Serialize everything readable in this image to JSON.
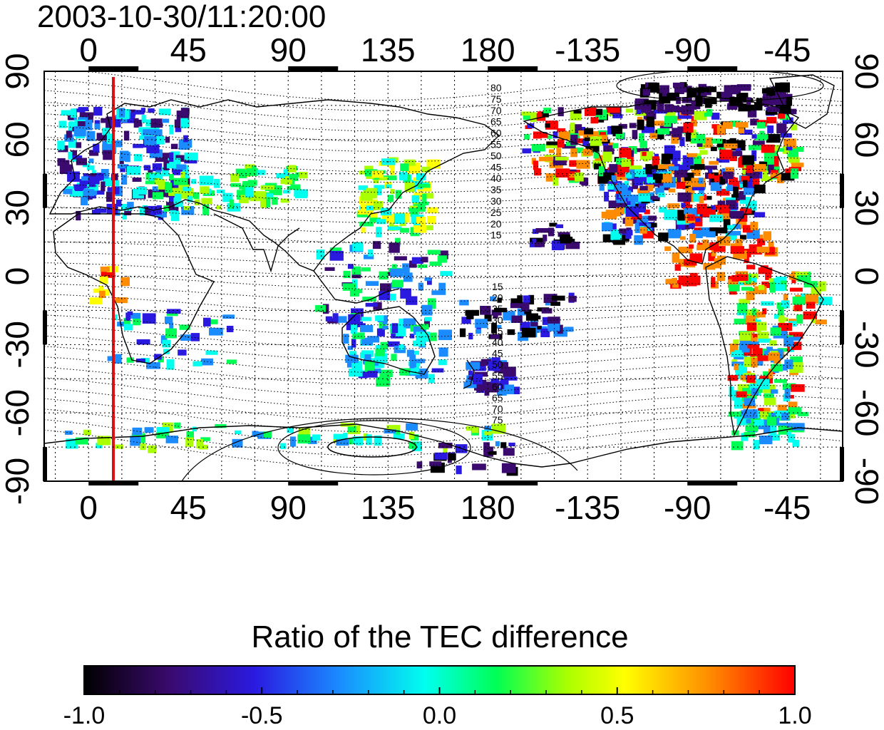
{
  "title": "2003-10-30/11:20:00",
  "map": {
    "top_lon_ticks": [
      "0",
      "45",
      "90",
      "135",
      "180",
      "-135",
      "-90",
      "-45"
    ],
    "bottom_lon_ticks": [
      "0",
      "45",
      "90",
      "135",
      "180",
      "-135",
      "-90",
      "-45"
    ],
    "left_lat_ticks": [
      "90",
      "60",
      "30",
      "0",
      "-30",
      "-60",
      "-90"
    ],
    "right_lat_ticks": [
      "90",
      "60",
      "30",
      "0",
      "-30",
      "-60",
      "-90"
    ],
    "mlat_labels_north": [
      "80",
      "75",
      "70",
      "65",
      "60",
      "55",
      "50",
      "45",
      "40",
      "35",
      "30",
      "25",
      "20",
      "15"
    ],
    "mlat_labels_south": [
      "15",
      "20",
      "25",
      "30",
      "35",
      "40",
      "45",
      "50",
      "55",
      "60",
      "65",
      "70",
      "75"
    ],
    "marker_line_color": "#dd1111",
    "grid": true
  },
  "colorbar": {
    "title": "Ratio of the TEC difference",
    "tick_labels": [
      "-1.0",
      "-0.5",
      "0.0",
      "0.5",
      "1.0"
    ],
    "colors": [
      "#000000",
      "#3a0a6e",
      "#2a1ae0",
      "#1a8cff",
      "#00ffee",
      "#00ff55",
      "#aaff00",
      "#ffff00",
      "#ff8c00",
      "#ff0000"
    ]
  }
}
